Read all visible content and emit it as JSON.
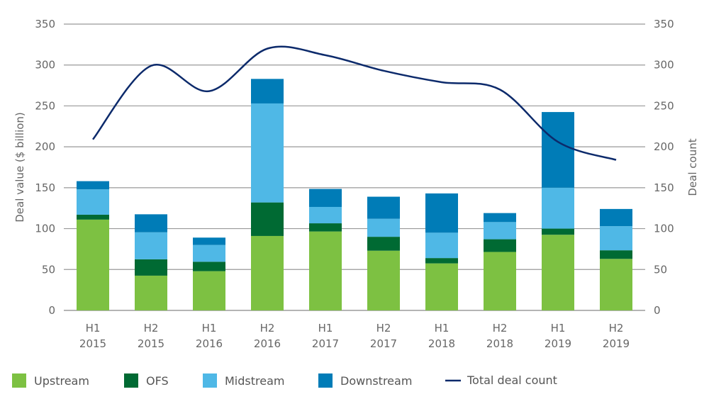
{
  "chart_data": {
    "type": "bar",
    "stacked": true,
    "categories": [
      "H1 2015",
      "H2 2015",
      "H1 2016",
      "H2 2016",
      "H1 2017",
      "H2 2017",
      "H1 2018",
      "H2 2018",
      "H1 2019",
      "H2 2019"
    ],
    "category_lines": [
      [
        "H1",
        "2015"
      ],
      [
        "H2",
        "2015"
      ],
      [
        "H1",
        "2016"
      ],
      [
        "H2",
        "2016"
      ],
      [
        "H1",
        "2017"
      ],
      [
        "H2",
        "2017"
      ],
      [
        "H1",
        "2018"
      ],
      [
        "H2",
        "2018"
      ],
      [
        "H1",
        "2019"
      ],
      [
        "H2",
        "2019"
      ]
    ],
    "series": [
      {
        "name": "Upstream",
        "color": "#7dc142",
        "values": [
          111,
          42.5,
          48,
          91,
          96.5,
          73,
          57.5,
          71.5,
          92.5,
          63
        ]
      },
      {
        "name": "OFS",
        "color": "#006a33",
        "values": [
          6,
          20,
          11.5,
          41,
          10,
          17,
          6.5,
          15.5,
          7.5,
          10.5
        ]
      },
      {
        "name": "Midstream",
        "color": "#4fb8e6",
        "values": [
          31,
          33,
          20.5,
          121,
          20,
          22,
          31,
          21,
          50,
          29.5
        ]
      },
      {
        "name": "Downstream",
        "color": "#007cb7",
        "values": [
          10,
          22,
          9,
          30,
          22,
          27,
          48,
          11,
          92.5,
          21
        ]
      }
    ],
    "line_series": {
      "name": "Total deal count",
      "color": "#0c2a6b",
      "axis": "right",
      "values": [
        209,
        299,
        268,
        320,
        312,
        293,
        279,
        270,
        206,
        184
      ]
    },
    "ylabel": "Deal value ($ billion)",
    "y2label": "Deal count",
    "ylim": [
      0,
      350
    ],
    "y2lim": [
      0,
      350
    ],
    "yticks": [
      0,
      50,
      100,
      150,
      200,
      250,
      300,
      350
    ],
    "grid": true,
    "legend_position": "bottom"
  }
}
